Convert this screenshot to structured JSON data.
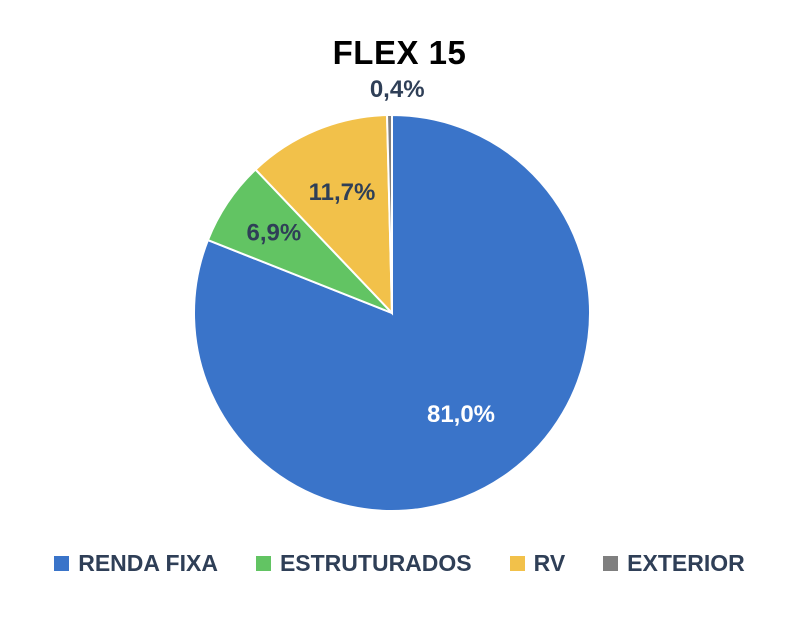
{
  "chart_data": {
    "type": "pie",
    "title": "FLEX 15",
    "categories": [
      "RENDA FIXA",
      "ESTRUTURADOS",
      "RV",
      "EXTERIOR"
    ],
    "values": [
      81.0,
      6.9,
      11.7,
      0.4
    ],
    "labels": [
      "81,0%",
      "6,9%",
      "11,7%",
      "0,4%"
    ],
    "colors": [
      "#3a74c9",
      "#62c463",
      "#f2c14a",
      "#7f7f7f"
    ],
    "label_colors": [
      "#ffffff",
      "#2f3f57",
      "#2f3f57",
      "#2f3f57"
    ],
    "start_angle_deg": 0,
    "direction": "clockwise",
    "legend_position": "bottom"
  }
}
